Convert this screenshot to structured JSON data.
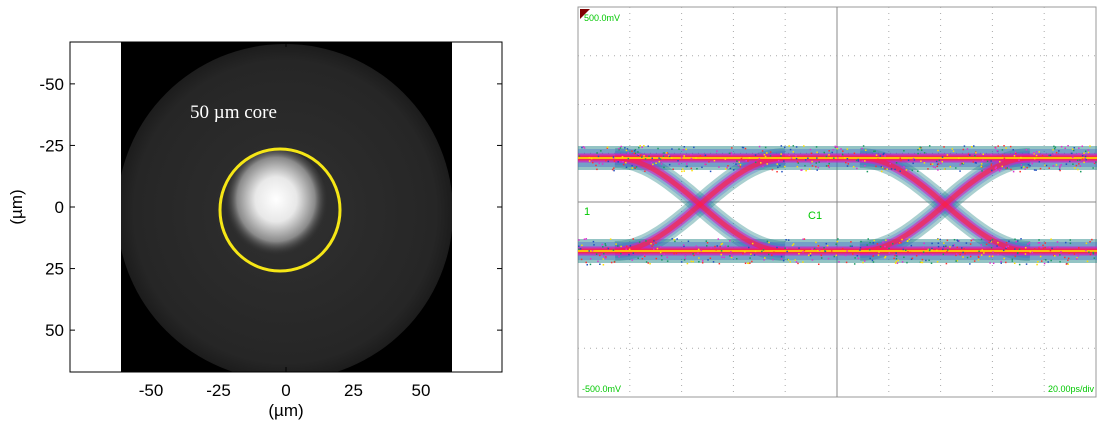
{
  "chart_data": [
    {
      "type": "image",
      "xlabel": "(µm)",
      "ylabel": "(µm)",
      "xlim": [
        -80,
        80
      ],
      "ylim": [
        67,
        -67
      ],
      "xticks": [
        -50,
        -25,
        0,
        25,
        50
      ],
      "yticks": [
        -50,
        -25,
        0,
        25,
        50
      ],
      "annotation": "50 µm core",
      "circle_color": "#f5e616"
    },
    {
      "type": "eye",
      "top_label": "500.0mV",
      "bottom_label": "-500.0mV",
      "scale_label": "20.00ps/div",
      "channel_label": "C1",
      "marker_label": "1"
    }
  ]
}
